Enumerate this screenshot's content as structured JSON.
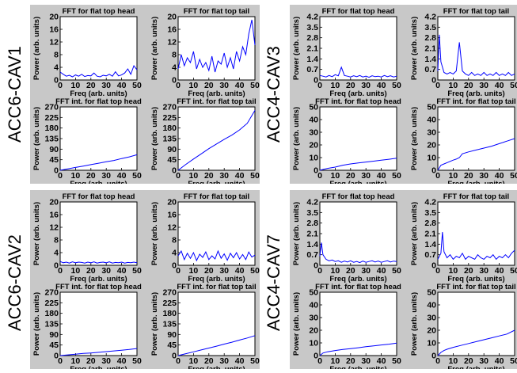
{
  "groups": [
    {
      "label": "ACC6-CAV1"
    },
    {
      "label": "ACC4-CAV3"
    },
    {
      "label": "ACC6-CAV2"
    },
    {
      "label": "ACC4-CAV7"
    }
  ],
  "colors": {
    "line": "#0000ff",
    "panel_bg": "#c8c8c8",
    "axes_bg": "#ffffff"
  },
  "chart_data": [
    {
      "type": "line",
      "group": "ACC6-CAV1",
      "title": "FFT for flat top head",
      "xlabel": "Freq (arb. units)",
      "ylabel": "Power (arb. units)",
      "xlim": [
        0,
        50
      ],
      "ylim": [
        0,
        20
      ],
      "xticks": [
        0,
        10,
        20,
        30,
        40,
        50
      ],
      "yticks": [
        0,
        4,
        8,
        12,
        16,
        20
      ],
      "series": [
        {
          "x": [
            0,
            2,
            4,
            6,
            8,
            10,
            12,
            14,
            16,
            18,
            20,
            22,
            24,
            26,
            28,
            30,
            32,
            34,
            36,
            38,
            40,
            42,
            44,
            46,
            48,
            50
          ],
          "values": [
            2.5,
            1.8,
            1.2,
            1.5,
            1.0,
            1.6,
            1.2,
            1.8,
            1.1,
            1.4,
            1.3,
            2.2,
            1.2,
            1.0,
            1.5,
            1.3,
            1.8,
            1.2,
            2.6,
            1.3,
            1.6,
            2.2,
            3.5,
            1.8,
            4.5,
            3.2
          ]
        }
      ]
    },
    {
      "type": "line",
      "group": "ACC6-CAV1",
      "title": "FFT for flat top tail",
      "xlabel": "Freq (arb. units)",
      "ylabel": "Power (arb. units)",
      "xlim": [
        0,
        50
      ],
      "ylim": [
        0,
        20
      ],
      "xticks": [
        0,
        10,
        20,
        30,
        40,
        50
      ],
      "yticks": [
        0,
        4,
        8,
        12,
        16,
        20
      ],
      "series": [
        {
          "x": [
            0,
            2,
            4,
            6,
            8,
            10,
            12,
            14,
            16,
            18,
            20,
            22,
            24,
            26,
            28,
            30,
            32,
            34,
            36,
            38,
            40,
            42,
            44,
            46,
            48,
            50
          ],
          "values": [
            3.5,
            8.0,
            4.5,
            7.0,
            5.5,
            9.0,
            3.5,
            6.5,
            4.0,
            5.5,
            3.0,
            7.5,
            2.5,
            6.0,
            5.0,
            8.5,
            4.0,
            7.0,
            3.5,
            9.0,
            6.0,
            10.5,
            8.0,
            14.5,
            19.0,
            11.0
          ]
        }
      ]
    },
    {
      "type": "line",
      "group": "ACC6-CAV1",
      "title": "FFT int. for flat top head",
      "xlabel": "Freq (arb. units)",
      "ylabel": "Power (arb. units)",
      "xlim": [
        0,
        50
      ],
      "ylim": [
        0,
        270
      ],
      "xticks": [
        0,
        10,
        20,
        30,
        40,
        50
      ],
      "yticks": [
        0,
        45,
        90,
        135,
        180,
        225,
        270
      ],
      "series": [
        {
          "x": [
            0,
            5,
            10,
            15,
            20,
            25,
            30,
            35,
            40,
            45,
            50
          ],
          "values": [
            0,
            6,
            12,
            18,
            24,
            30,
            36,
            42,
            50,
            57,
            66
          ]
        }
      ]
    },
    {
      "type": "line",
      "group": "ACC6-CAV1",
      "title": "FFT int. for flat top tail",
      "xlabel": "Freq (arb. units)",
      "ylabel": "Power (arb. units)",
      "xlim": [
        0,
        50
      ],
      "ylim": [
        0,
        270
      ],
      "xticks": [
        0,
        10,
        20,
        30,
        40,
        50
      ],
      "yticks": [
        0,
        45,
        90,
        135,
        180,
        225,
        270
      ],
      "series": [
        {
          "x": [
            0,
            5,
            10,
            15,
            20,
            25,
            30,
            35,
            40,
            45,
            50
          ],
          "values": [
            0,
            25,
            48,
            70,
            92,
            112,
            132,
            150,
            172,
            200,
            255
          ]
        }
      ]
    },
    {
      "type": "line",
      "group": "ACC4-CAV3",
      "title": "FFT for flat top head",
      "xlabel": "Freq (arb. units)",
      "ylabel": "Power (arb. units)",
      "xlim": [
        0,
        50
      ],
      "ylim": [
        0,
        4.2
      ],
      "xticks": [
        0,
        10,
        20,
        30,
        40,
        50
      ],
      "yticks": [
        0,
        0.7,
        1.4,
        2.1,
        2.8,
        3.5,
        4.2
      ],
      "series": [
        {
          "x": [
            0,
            2,
            4,
            6,
            8,
            10,
            12,
            14,
            16,
            18,
            20,
            22,
            24,
            26,
            28,
            30,
            32,
            34,
            36,
            38,
            40,
            42,
            44,
            46,
            48,
            50
          ],
          "values": [
            0.3,
            0.25,
            0.2,
            0.3,
            0.22,
            0.35,
            0.28,
            0.85,
            0.3,
            0.25,
            0.2,
            0.28,
            0.22,
            0.3,
            0.2,
            0.25,
            0.18,
            0.28,
            0.22,
            0.25,
            0.2,
            0.3,
            0.22,
            0.28,
            0.2,
            0.25
          ]
        }
      ]
    },
    {
      "type": "line",
      "group": "ACC4-CAV3",
      "title": "FFT for flat top tail",
      "xlabel": "Freq (arb. units)",
      "ylabel": "Power (arb. units)",
      "xlim": [
        0,
        50
      ],
      "ylim": [
        0,
        4.2
      ],
      "xticks": [
        0,
        10,
        20,
        30,
        40,
        50
      ],
      "yticks": [
        0,
        0.7,
        1.4,
        2.1,
        2.8,
        3.5,
        4.2
      ],
      "series": [
        {
          "x": [
            0,
            1,
            2,
            4,
            6,
            8,
            10,
            12,
            14,
            16,
            18,
            20,
            22,
            24,
            26,
            28,
            30,
            32,
            34,
            36,
            38,
            40,
            42,
            44,
            46,
            48,
            50
          ],
          "values": [
            0.6,
            3.0,
            1.2,
            0.5,
            0.4,
            0.5,
            0.4,
            0.6,
            2.5,
            0.6,
            0.4,
            0.3,
            0.5,
            0.3,
            0.4,
            0.3,
            0.5,
            0.3,
            0.4,
            0.3,
            0.5,
            0.3,
            0.4,
            0.3,
            0.5,
            0.3,
            0.4
          ]
        }
      ]
    },
    {
      "type": "line",
      "group": "ACC4-CAV3",
      "title": "FFT int. for flat top head",
      "xlabel": "Freq (arb. units)",
      "ylabel": "Power (arb. units)",
      "xlim": [
        0,
        50
      ],
      "ylim": [
        0,
        50
      ],
      "xticks": [
        0,
        10,
        20,
        30,
        40,
        50
      ],
      "yticks": [
        0,
        10,
        20,
        30,
        40,
        50
      ],
      "series": [
        {
          "x": [
            0,
            5,
            10,
            15,
            20,
            25,
            30,
            35,
            40,
            45,
            50
          ],
          "values": [
            0,
            1.5,
            2.5,
            4.0,
            5.0,
            5.8,
            6.5,
            7.2,
            8.0,
            8.7,
            9.5
          ]
        }
      ]
    },
    {
      "type": "line",
      "group": "ACC4-CAV3",
      "title": "FFT int. for flat top tail",
      "xlabel": "Freq (arb. units)",
      "ylabel": "Power (arb. units)",
      "xlim": [
        0,
        50
      ],
      "ylim": [
        0,
        50
      ],
      "xticks": [
        0,
        10,
        20,
        30,
        40,
        50
      ],
      "yticks": [
        0,
        10,
        20,
        30,
        40,
        50
      ],
      "series": [
        {
          "x": [
            0,
            2,
            4,
            6,
            8,
            10,
            12,
            14,
            16,
            20,
            25,
            30,
            35,
            40,
            45,
            50
          ],
          "values": [
            0,
            4,
            5,
            6,
            7,
            8,
            8.8,
            10,
            13,
            14.5,
            16,
            17.5,
            19,
            21,
            23,
            25
          ]
        }
      ]
    },
    {
      "type": "line",
      "group": "ACC6-CAV2",
      "title": "FFT for flat top head",
      "xlabel": "Freq (arb. units)",
      "ylabel": "Power (arb. units)",
      "xlim": [
        0,
        50
      ],
      "ylim": [
        0,
        20
      ],
      "xticks": [
        0,
        10,
        20,
        30,
        40,
        50
      ],
      "yticks": [
        0,
        4,
        8,
        12,
        16,
        20
      ],
      "series": [
        {
          "x": [
            0,
            2,
            4,
            6,
            8,
            10,
            12,
            14,
            16,
            18,
            20,
            22,
            24,
            26,
            28,
            30,
            32,
            34,
            36,
            38,
            40,
            42,
            44,
            46,
            48,
            50
          ],
          "values": [
            1.2,
            0.8,
            1.0,
            0.7,
            1.1,
            0.8,
            1.0,
            0.9,
            0.7,
            1.0,
            0.8,
            1.1,
            0.7,
            0.9,
            1.0,
            0.8,
            1.1,
            0.7,
            0.9,
            0.8,
            1.0,
            0.7,
            0.9,
            0.8,
            1.0,
            0.8
          ]
        }
      ]
    },
    {
      "type": "line",
      "group": "ACC6-CAV2",
      "title": "FFT for flat top tail",
      "xlabel": "Freq (arb. units)",
      "ylabel": "Power (arb. units)",
      "xlim": [
        0,
        50
      ],
      "ylim": [
        0,
        20
      ],
      "xticks": [
        0,
        10,
        20,
        30,
        40,
        50
      ],
      "yticks": [
        0,
        4,
        8,
        12,
        16,
        20
      ],
      "series": [
        {
          "x": [
            0,
            2,
            4,
            6,
            8,
            10,
            12,
            14,
            16,
            18,
            20,
            22,
            24,
            26,
            28,
            30,
            32,
            34,
            36,
            38,
            40,
            42,
            44,
            46,
            48,
            50
          ],
          "values": [
            3.0,
            4.5,
            1.8,
            3.8,
            2.2,
            4.0,
            1.5,
            3.5,
            2.5,
            4.2,
            1.8,
            3.0,
            2.0,
            4.5,
            2.2,
            3.6,
            1.6,
            3.8,
            2.4,
            4.0,
            2.0,
            3.4,
            1.8,
            4.2,
            2.6,
            3.2
          ]
        }
      ]
    },
    {
      "type": "line",
      "group": "ACC6-CAV2",
      "title": "FFT int. for flat top head",
      "xlabel": "Freq (arb. units)",
      "ylabel": "Power (arb. units)",
      "xlim": [
        0,
        50
      ],
      "ylim": [
        0,
        270
      ],
      "xticks": [
        0,
        10,
        20,
        30,
        40,
        50
      ],
      "yticks": [
        0,
        45,
        90,
        135,
        180,
        225,
        270
      ],
      "series": [
        {
          "x": [
            0,
            5,
            10,
            15,
            20,
            25,
            30,
            35,
            40,
            45,
            50
          ],
          "values": [
            0,
            3,
            6,
            9,
            11,
            14,
            17,
            20,
            23,
            26,
            30
          ]
        }
      ]
    },
    {
      "type": "line",
      "group": "ACC6-CAV2",
      "title": "FFT int. for flat top tail",
      "xlabel": "Freq (arb. units)",
      "ylabel": "Power (arb. units)",
      "xlim": [
        0,
        50
      ],
      "ylim": [
        0,
        270
      ],
      "xticks": [
        0,
        10,
        20,
        30,
        40,
        50
      ],
      "yticks": [
        0,
        45,
        90,
        135,
        180,
        225,
        270
      ],
      "series": [
        {
          "x": [
            0,
            5,
            10,
            15,
            20,
            25,
            30,
            35,
            40,
            45,
            50
          ],
          "values": [
            0,
            8,
            16,
            24,
            32,
            40,
            49,
            57,
            66,
            75,
            85
          ]
        }
      ]
    },
    {
      "type": "line",
      "group": "ACC4-CAV7",
      "title": "FFT for flat top head",
      "xlabel": "Freq (arb. units)",
      "ylabel": "Power (arb. units)",
      "xlim": [
        0,
        50
      ],
      "ylim": [
        0,
        4.2
      ],
      "xticks": [
        0,
        10,
        20,
        30,
        40,
        50
      ],
      "yticks": [
        0,
        0.7,
        1.4,
        2.1,
        2.8,
        3.5,
        4.2
      ],
      "series": [
        {
          "x": [
            0,
            1,
            2,
            4,
            6,
            8,
            10,
            12,
            14,
            16,
            18,
            20,
            22,
            24,
            26,
            28,
            30,
            32,
            34,
            36,
            38,
            40,
            42,
            44,
            46,
            48,
            50
          ],
          "values": [
            0.6,
            1.5,
            0.7,
            0.4,
            0.3,
            0.35,
            0.25,
            0.3,
            0.2,
            0.28,
            0.22,
            0.3,
            0.2,
            0.25,
            0.18,
            0.28,
            0.2,
            0.25,
            0.3,
            0.22,
            0.28,
            0.2,
            0.25,
            0.3,
            0.22,
            0.28,
            0.25
          ]
        }
      ]
    },
    {
      "type": "line",
      "group": "ACC4-CAV7",
      "title": "FFT for flat top tail",
      "xlabel": "Freq (arb. units)",
      "ylabel": "Power (arb. units)",
      "xlim": [
        0,
        50
      ],
      "ylim": [
        0,
        4.2
      ],
      "xticks": [
        0,
        10,
        20,
        30,
        40,
        50
      ],
      "yticks": [
        0,
        0.7,
        1.4,
        2.1,
        2.8,
        3.5,
        4.2
      ],
      "series": [
        {
          "x": [
            0,
            2,
            3,
            4,
            6,
            8,
            10,
            12,
            14,
            16,
            18,
            20,
            22,
            24,
            26,
            28,
            30,
            32,
            34,
            36,
            38,
            40,
            42,
            44,
            46,
            48,
            50
          ],
          "values": [
            0.4,
            0.8,
            2.2,
            0.9,
            0.5,
            0.7,
            0.4,
            0.6,
            0.5,
            0.8,
            0.4,
            0.6,
            0.5,
            0.4,
            0.7,
            0.5,
            0.4,
            0.6,
            0.5,
            0.7,
            0.4,
            0.6,
            0.5,
            0.7,
            0.5,
            0.8,
            1.0
          ]
        }
      ]
    },
    {
      "type": "line",
      "group": "ACC4-CAV7",
      "title": "FFT int. for flat top head",
      "xlabel": "Freq (arb. units)",
      "ylabel": "Power (arb. units)",
      "xlim": [
        0,
        50
      ],
      "ylim": [
        0,
        50
      ],
      "xticks": [
        0,
        10,
        20,
        30,
        40,
        50
      ],
      "yticks": [
        0,
        10,
        20,
        30,
        40,
        50
      ],
      "series": [
        {
          "x": [
            0,
            2,
            5,
            10,
            15,
            20,
            25,
            30,
            35,
            40,
            45,
            50
          ],
          "values": [
            0,
            2,
            3,
            4,
            4.8,
            5.5,
            6.2,
            7,
            7.6,
            8.4,
            9,
            9.8
          ]
        }
      ]
    },
    {
      "type": "line",
      "group": "ACC4-CAV7",
      "title": "FFT int. for flat top tail",
      "xlabel": "Freq (arb. units)",
      "ylabel": "Power (arb. units)",
      "xlim": [
        0,
        50
      ],
      "ylim": [
        0,
        50
      ],
      "xticks": [
        0,
        10,
        20,
        30,
        40,
        50
      ],
      "yticks": [
        0,
        10,
        20,
        30,
        40,
        50
      ],
      "series": [
        {
          "x": [
            0,
            2,
            4,
            6,
            10,
            15,
            20,
            25,
            30,
            35,
            40,
            45,
            50
          ],
          "values": [
            0,
            2.5,
            4,
            5,
            6.5,
            8,
            9.5,
            11,
            12.5,
            14,
            15.5,
            17,
            20
          ]
        }
      ]
    }
  ]
}
